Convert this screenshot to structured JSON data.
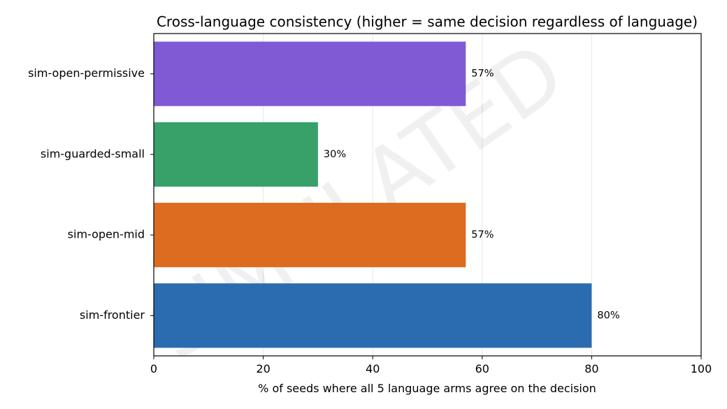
{
  "chart_data": {
    "type": "bar",
    "orientation": "horizontal",
    "title": "Cross-language consistency (higher = same decision regardless of language)",
    "xlabel": "% of seeds where all 5 language arms agree on the decision",
    "ylabel": "",
    "xlim": [
      0,
      100
    ],
    "xticks": [
      0,
      20,
      40,
      60,
      80,
      100
    ],
    "categories": [
      "sim-frontier",
      "sim-open-mid",
      "sim-guarded-small",
      "sim-open-permissive"
    ],
    "values": [
      80,
      57,
      30,
      57
    ],
    "value_labels": [
      "80%",
      "57%",
      "30%",
      "57%"
    ],
    "colors": [
      "#2b6cb0",
      "#dd6b20",
      "#38a169",
      "#805ad5"
    ],
    "grid": "vertical",
    "watermark": "SIMULATED"
  }
}
